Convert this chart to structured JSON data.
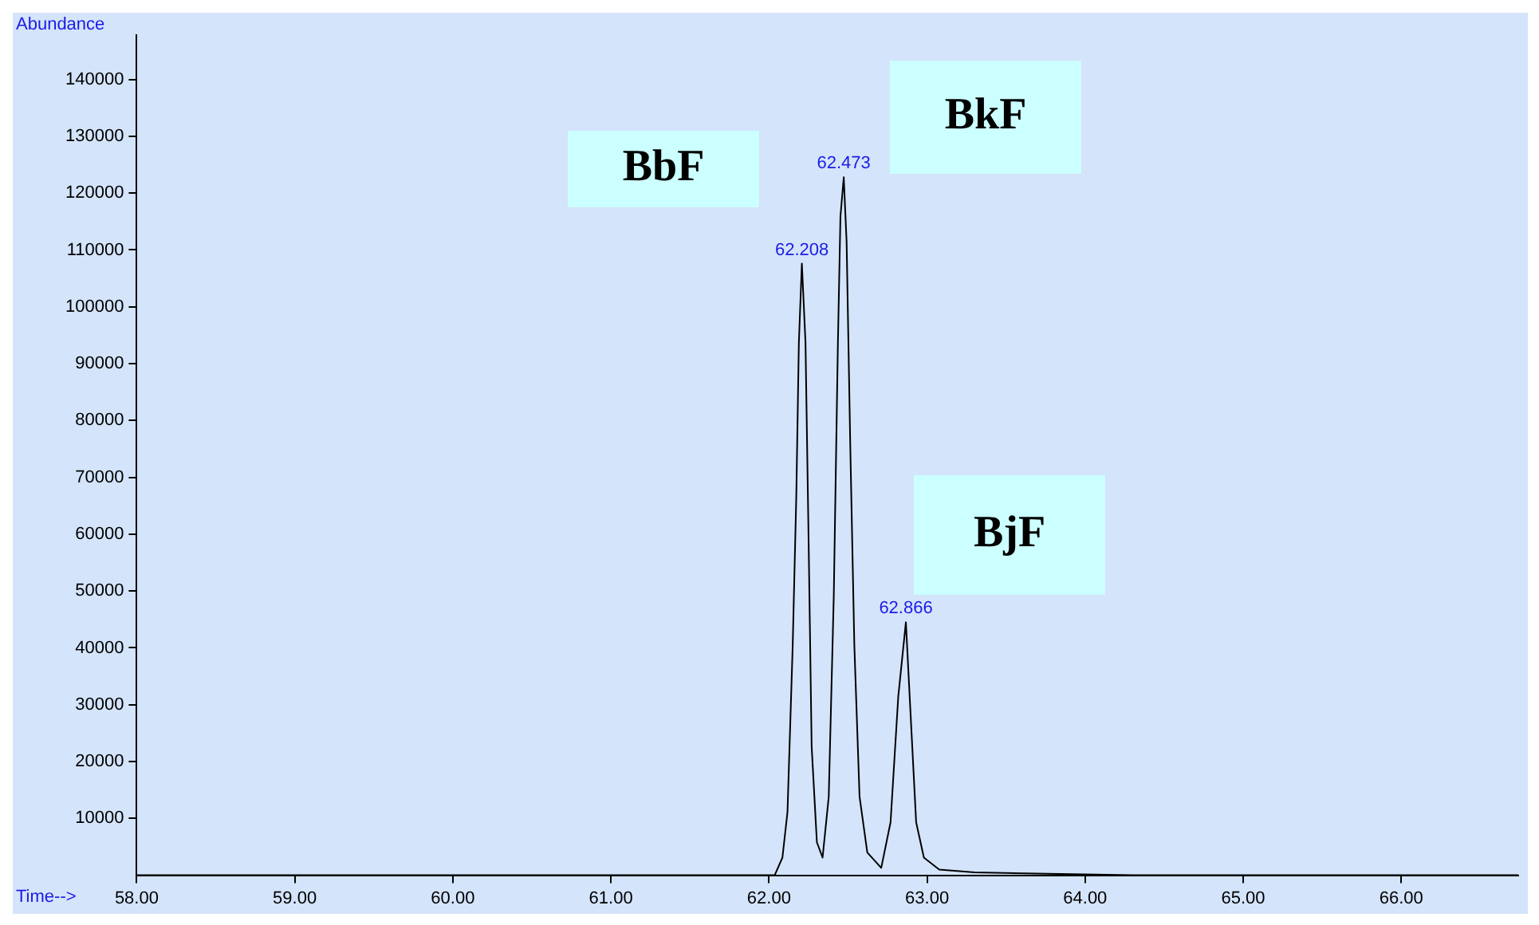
{
  "chart_data": {
    "type": "line",
    "xlabel": "Time-->",
    "ylabel": "Abundance",
    "marker": "none",
    "line_style": "solid",
    "grid": false,
    "legend": false,
    "xlim": [
      58,
      66.74
    ],
    "ylim": [
      0,
      147800
    ],
    "xticks": [
      {
        "value": 58,
        "label": "58.00"
      },
      {
        "value": 59,
        "label": "59.00"
      },
      {
        "value": 60,
        "label": "60.00"
      },
      {
        "value": 61,
        "label": "61.00"
      },
      {
        "value": 62,
        "label": "62.00"
      },
      {
        "value": 63,
        "label": "63.00"
      },
      {
        "value": 64,
        "label": "64.00"
      },
      {
        "value": 65,
        "label": "65.00"
      },
      {
        "value": 66,
        "label": "66.00"
      }
    ],
    "yticks": [
      10000,
      20000,
      30000,
      40000,
      50000,
      60000,
      70000,
      80000,
      90000,
      100000,
      110000,
      120000,
      130000,
      140000
    ],
    "series": [
      {
        "color": "#000000",
        "x": [
          58,
          62.036,
          62.085,
          62.117,
          62.15,
          62.173,
          62.189,
          62.208,
          62.231,
          62.251,
          62.27,
          62.303,
          62.339,
          62.378,
          62.41,
          62.436,
          62.452,
          62.473,
          62.491,
          62.514,
          62.54,
          62.573,
          62.622,
          62.71,
          62.769,
          62.818,
          62.866,
          62.898,
          62.931,
          62.98,
          63.077,
          63.3,
          64.3,
          66.74
        ],
        "values": [
          0,
          0,
          3100,
          11100,
          40400,
          67000,
          93700,
          107600,
          93700,
          58200,
          22600,
          5800,
          3100,
          13800,
          49300,
          93700,
          115900,
          122800,
          111400,
          75900,
          40400,
          13800,
          4000,
          1300,
          9300,
          31500,
          44500,
          27100,
          9300,
          3100,
          1000,
          500,
          0,
          0
        ]
      }
    ],
    "annotations": [
      {
        "text": "62.208",
        "x": 62.208,
        "y": 107600
      },
      {
        "text": "62.473",
        "x": 62.473,
        "y": 122800
      },
      {
        "text": "62.866",
        "x": 62.866,
        "y": 44500
      },
      "BbF",
      "BkF",
      "BjF"
    ]
  }
}
